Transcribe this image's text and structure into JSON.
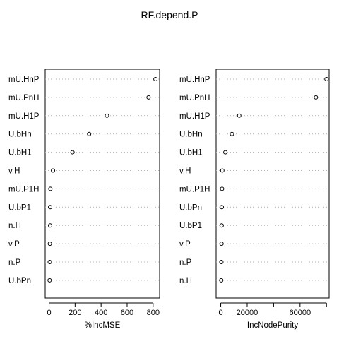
{
  "chart_data": {
    "type": "dotchart",
    "title": "RF.depend.P",
    "grid": "dotted horizontal guide lines",
    "panels": [
      {
        "type": "scatter",
        "xlabel": "%IncMSE",
        "xlim": [
          -30,
          850
        ],
        "xticks": [
          0,
          200,
          400,
          600,
          800
        ],
        "xtick_labels": [
          "0",
          "200",
          "400",
          "600",
          "800"
        ],
        "categories": [
          "mU.HnP",
          "mU.PnH",
          "mU.H1P",
          "U.bHn",
          "U.bH1",
          "v.H",
          "mU.P1H",
          "U.bP1",
          "n.H",
          "v.P",
          "n.P",
          "U.bPn"
        ],
        "values": [
          818,
          765,
          445,
          308,
          180,
          30,
          10,
          8,
          8,
          6,
          5,
          4
        ]
      },
      {
        "type": "scatter",
        "xlabel": "IncNodePurity",
        "xlim": [
          -3500,
          82000
        ],
        "xticks": [
          0,
          20000,
          40000,
          60000,
          80000
        ],
        "xtick_labels": [
          "0",
          "20000",
          "",
          "60000",
          ""
        ],
        "categories": [
          "mU.HnP",
          "mU.PnH",
          "mU.H1P",
          "U.bHn",
          "U.bH1",
          "v.H",
          "mU.P1H",
          "U.bPn",
          "U.bP1",
          "v.P",
          "n.P",
          "n.H"
        ],
        "values": [
          80000,
          72000,
          14000,
          8500,
          3500,
          1200,
          1000,
          800,
          700,
          600,
          500,
          400
        ]
      }
    ]
  }
}
